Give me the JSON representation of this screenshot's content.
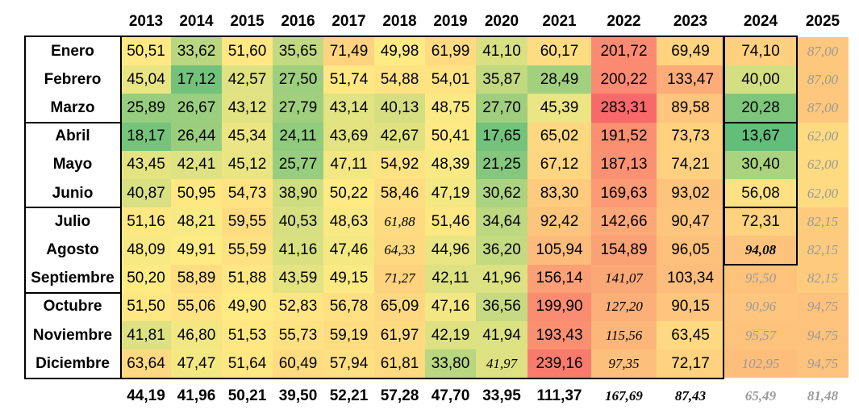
{
  "years": [
    "2013",
    "2014",
    "2015",
    "2016",
    "2017",
    "2018",
    "2019",
    "2020",
    "2021",
    "2022",
    "2023",
    "2024",
    "2025"
  ],
  "months": [
    "Enero",
    "Febrero",
    "Marzo",
    "Abril",
    "Mayo",
    "Junio",
    "Julio",
    "Agosto",
    "Septiembre",
    "Octubre",
    "Noviembre",
    "Diciembre"
  ],
  "rows": [
    {
      "month": "Enero",
      "values": [
        "50,51",
        "33,62",
        "51,60",
        "35,65",
        "71,49",
        "49,98",
        "61,99",
        "41,10",
        "60,17",
        "201,72",
        "69,49",
        "74,10",
        "87,00"
      ],
      "nums": [
        50.51,
        33.62,
        51.6,
        35.65,
        71.49,
        49.98,
        61.99,
        41.1,
        60.17,
        201.72,
        69.49,
        74.1,
        87.0
      ],
      "styles": [
        "n",
        "n",
        "n",
        "n",
        "n",
        "n",
        "n",
        "n",
        "n",
        "n",
        "n",
        "n",
        "g"
      ]
    },
    {
      "month": "Febrero",
      "values": [
        "45,04",
        "17,12",
        "42,57",
        "27,50",
        "51,74",
        "54,88",
        "54,01",
        "35,87",
        "28,49",
        "200,22",
        "133,47",
        "40,00",
        "87,00"
      ],
      "nums": [
        45.04,
        17.12,
        42.57,
        27.5,
        51.74,
        54.88,
        54.01,
        35.87,
        28.49,
        200.22,
        133.47,
        40.0,
        87.0
      ],
      "styles": [
        "n",
        "n",
        "n",
        "n",
        "n",
        "n",
        "n",
        "n",
        "n",
        "n",
        "n",
        "n",
        "g"
      ]
    },
    {
      "month": "Marzo",
      "values": [
        "25,89",
        "26,67",
        "43,12",
        "27,79",
        "43,14",
        "40,13",
        "48,75",
        "27,70",
        "45,39",
        "283,31",
        "89,58",
        "20,28",
        "87,00"
      ],
      "nums": [
        25.89,
        26.67,
        43.12,
        27.79,
        43.14,
        40.13,
        48.75,
        27.7,
        45.39,
        283.31,
        89.58,
        20.28,
        87.0
      ],
      "styles": [
        "n",
        "n",
        "n",
        "n",
        "n",
        "n",
        "n",
        "n",
        "n",
        "n",
        "n",
        "n",
        "g"
      ]
    },
    {
      "month": "Abril",
      "values": [
        "18,17",
        "26,44",
        "45,34",
        "24,11",
        "43,69",
        "42,67",
        "50,41",
        "17,65",
        "65,02",
        "191,52",
        "73,73",
        "13,67",
        "62,00"
      ],
      "nums": [
        18.17,
        26.44,
        45.34,
        24.11,
        43.69,
        42.67,
        50.41,
        17.65,
        65.02,
        191.52,
        73.73,
        13.67,
        62.0
      ],
      "styles": [
        "n",
        "n",
        "n",
        "n",
        "n",
        "n",
        "n",
        "n",
        "n",
        "n",
        "n",
        "n",
        "g"
      ]
    },
    {
      "month": "Mayo",
      "values": [
        "43,45",
        "42,41",
        "45,12",
        "25,77",
        "47,11",
        "54,92",
        "48,39",
        "21,25",
        "67,12",
        "187,13",
        "74,21",
        "30,40",
        "62,00"
      ],
      "nums": [
        43.45,
        42.41,
        45.12,
        25.77,
        47.11,
        54.92,
        48.39,
        21.25,
        67.12,
        187.13,
        74.21,
        30.4,
        62.0
      ],
      "styles": [
        "n",
        "n",
        "n",
        "n",
        "n",
        "n",
        "n",
        "n",
        "n",
        "n",
        "n",
        "n",
        "g"
      ]
    },
    {
      "month": "Junio",
      "values": [
        "40,87",
        "50,95",
        "54,73",
        "38,90",
        "50,22",
        "58,46",
        "47,19",
        "30,62",
        "83,30",
        "169,63",
        "93,02",
        "56,08",
        "62,00"
      ],
      "nums": [
        40.87,
        50.95,
        54.73,
        38.9,
        50.22,
        58.46,
        47.19,
        30.62,
        83.3,
        169.63,
        93.02,
        56.08,
        62.0
      ],
      "styles": [
        "n",
        "n",
        "n",
        "n",
        "n",
        "n",
        "n",
        "n",
        "n",
        "n",
        "n",
        "n",
        "g"
      ]
    },
    {
      "month": "Julio",
      "values": [
        "51,16",
        "48,21",
        "59,55",
        "40,53",
        "48,63",
        "61,88",
        "51,46",
        "34,64",
        "92,42",
        "142,66",
        "90,47",
        "72,31",
        "82,15"
      ],
      "nums": [
        51.16,
        48.21,
        59.55,
        40.53,
        48.63,
        61.88,
        51.46,
        34.64,
        92.42,
        142.66,
        90.47,
        72.31,
        82.15
      ],
      "styles": [
        "n",
        "n",
        "n",
        "n",
        "n",
        "i",
        "n",
        "n",
        "n",
        "n",
        "n",
        "n",
        "g"
      ]
    },
    {
      "month": "Agosto",
      "values": [
        "48,09",
        "49,91",
        "55,59",
        "41,16",
        "47,46",
        "64,33",
        "44,96",
        "36,20",
        "105,94",
        "154,89",
        "96,05",
        "94,08",
        "82,15"
      ],
      "nums": [
        48.09,
        49.91,
        55.59,
        41.16,
        47.46,
        64.33,
        44.96,
        36.2,
        105.94,
        154.89,
        96.05,
        94.08,
        82.15
      ],
      "styles": [
        "n",
        "n",
        "n",
        "n",
        "n",
        "i",
        "n",
        "n",
        "n",
        "n",
        "n",
        "ib",
        "g"
      ]
    },
    {
      "month": "Septiembre",
      "values": [
        "50,20",
        "58,89",
        "51,88",
        "43,59",
        "49,15",
        "71,27",
        "42,11",
        "41,96",
        "156,14",
        "141,07",
        "103,34",
        "95,50",
        "82,15"
      ],
      "nums": [
        50.2,
        58.89,
        51.88,
        43.59,
        49.15,
        71.27,
        42.11,
        41.96,
        156.14,
        141.07,
        103.34,
        95.5,
        82.15
      ],
      "styles": [
        "n",
        "n",
        "n",
        "n",
        "n",
        "i",
        "n",
        "n",
        "n",
        "i",
        "n",
        "g",
        "g"
      ]
    },
    {
      "month": "Octubre",
      "values": [
        "51,50",
        "55,06",
        "49,90",
        "52,83",
        "56,78",
        "65,09",
        "47,16",
        "36,56",
        "199,90",
        "127,20",
        "90,15",
        "90,96",
        "94,75"
      ],
      "nums": [
        51.5,
        55.06,
        49.9,
        52.83,
        56.78,
        65.09,
        47.16,
        36.56,
        199.9,
        127.2,
        90.15,
        90.96,
        94.75
      ],
      "styles": [
        "n",
        "n",
        "n",
        "n",
        "n",
        "n",
        "n",
        "n",
        "n",
        "i",
        "n",
        "g",
        "g"
      ]
    },
    {
      "month": "Noviembre",
      "values": [
        "41,81",
        "46,80",
        "51,53",
        "55,73",
        "59,19",
        "61,97",
        "42,19",
        "41,94",
        "193,43",
        "115,56",
        "63,45",
        "95,57",
        "94,75"
      ],
      "nums": [
        41.81,
        46.8,
        51.53,
        55.73,
        59.19,
        61.97,
        42.19,
        41.94,
        193.43,
        115.56,
        63.45,
        95.57,
        94.75
      ],
      "styles": [
        "n",
        "n",
        "n",
        "n",
        "n",
        "n",
        "n",
        "n",
        "n",
        "i",
        "n",
        "g",
        "g"
      ]
    },
    {
      "month": "Diciembre",
      "values": [
        "63,64",
        "47,47",
        "51,64",
        "60,49",
        "57,94",
        "61,81",
        "33,80",
        "41,97",
        "239,16",
        "97,35",
        "72,17",
        "102,95",
        "94,75"
      ],
      "nums": [
        63.64,
        47.47,
        51.64,
        60.49,
        57.94,
        61.81,
        33.8,
        41.97,
        239.16,
        97.35,
        72.17,
        102.95,
        94.75
      ],
      "styles": [
        "n",
        "n",
        "n",
        "n",
        "n",
        "n",
        "n",
        "i",
        "n",
        "i",
        "n",
        "g",
        "g"
      ]
    }
  ],
  "totals": [
    "44,19",
    "41,96",
    "50,21",
    "39,50",
    "52,21",
    "57,28",
    "47,70",
    "33,95",
    "111,37",
    "167,69",
    "87,43",
    "65,49",
    "81,48"
  ],
  "total_styles": [
    "b",
    "b",
    "b",
    "b",
    "b",
    "b",
    "b",
    "b",
    "b",
    "ib",
    "ib",
    "ig",
    "ig"
  ],
  "colors": {
    "low": "#63be7b",
    "mid": "#ffeb84",
    "high": "#f8696b",
    "text_gray": "#9a9a9a"
  },
  "color_scale": {
    "min": 13.67,
    "mid": 50,
    "max": 283.31
  }
}
